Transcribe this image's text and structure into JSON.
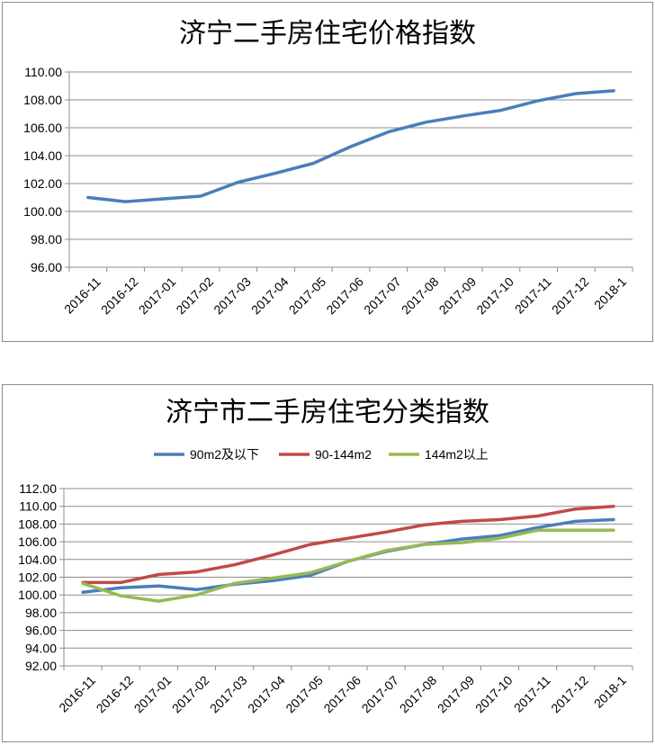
{
  "chart_data": [
    {
      "type": "line",
      "title": "济宁二手房住宅价格指数",
      "categories": [
        "2016-11",
        "2016-12",
        "2017-01",
        "2017-02",
        "2017-03",
        "2017-04",
        "2017-05",
        "2017-06",
        "2017-07",
        "2017-08",
        "2017-09",
        "2017-10",
        "2017-11",
        "2017-12",
        "2018-1"
      ],
      "y_tick_labels": [
        "96.00",
        "98.00",
        "100.00",
        "102.00",
        "104.00",
        "106.00",
        "108.00",
        "110.00"
      ],
      "ylim": [
        96,
        110
      ],
      "grid": true,
      "legend": "none",
      "series": [
        {
          "color": "#4a7ebb",
          "values": [
            101.0,
            100.7,
            100.9,
            101.1,
            102.1,
            102.75,
            103.45,
            104.65,
            105.7,
            106.4,
            106.85,
            107.25,
            107.95,
            108.45,
            108.65
          ]
        }
      ]
    },
    {
      "type": "line",
      "title": "济宁市二手房住宅分类指数",
      "categories": [
        "2016-11",
        "2016-12",
        "2017-01",
        "2017-02",
        "2017-03",
        "2017-04",
        "2017-05",
        "2017-06",
        "2017-07",
        "2017-08",
        "2017-09",
        "2017-10",
        "2017-11",
        "2017-12",
        "2018-1"
      ],
      "y_tick_labels": [
        "92.00",
        "94.00",
        "96.00",
        "98.00",
        "100.00",
        "102.00",
        "104.00",
        "106.00",
        "108.00",
        "110.00",
        "112.00"
      ],
      "ylim": [
        92,
        112
      ],
      "grid": true,
      "legend": "top",
      "series": [
        {
          "name": "90m2及以下",
          "color": "#4a7ebb",
          "values": [
            100.3,
            100.8,
            101.0,
            100.6,
            101.2,
            101.6,
            102.2,
            103.8,
            104.9,
            105.7,
            106.3,
            106.7,
            107.6,
            108.3,
            108.5
          ]
        },
        {
          "name": "90-144m2",
          "color": "#be4b48",
          "values": [
            101.4,
            101.4,
            102.3,
            102.6,
            103.4,
            104.5,
            105.7,
            106.4,
            107.1,
            107.9,
            108.3,
            108.5,
            108.9,
            109.7,
            110.0
          ]
        },
        {
          "name": "144m2以上",
          "color": "#98b954",
          "values": [
            101.3,
            99.9,
            99.3,
            100.0,
            101.3,
            101.9,
            102.5,
            103.8,
            105.0,
            105.7,
            105.9,
            106.4,
            107.3,
            107.3,
            107.3
          ]
        }
      ]
    }
  ]
}
